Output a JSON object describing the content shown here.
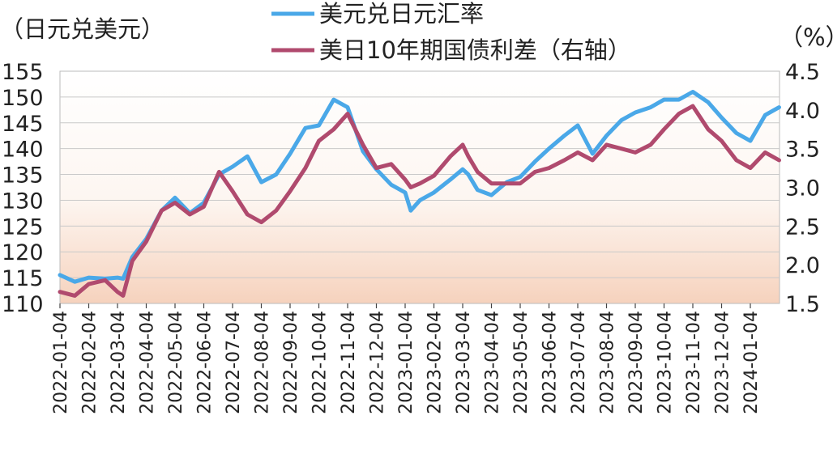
{
  "chart_data": {
    "type": "line",
    "left_unit": "（日元兑美元）",
    "right_unit": "（%）",
    "left_axis": {
      "ticks": [
        110,
        115,
        120,
        125,
        130,
        135,
        140,
        145,
        150,
        155
      ],
      "range": [
        110,
        155
      ]
    },
    "right_axis": {
      "ticks": [
        "1.5",
        "2.0",
        "2.5",
        "3.0",
        "3.5",
        "4.0",
        "4.5"
      ],
      "range": [
        1.5,
        4.5
      ]
    },
    "grid": true,
    "legend_position": "top-center",
    "x_tick_labels": [
      "2022-01-04",
      "2022-02-04",
      "2022-03-04",
      "2022-04-04",
      "2022-05-04",
      "2022-06-04",
      "2022-07-04",
      "2022-08-04",
      "2022-09-04",
      "2022-10-04",
      "2022-11-04",
      "2022-12-04",
      "2023-01-04",
      "2023-02-04",
      "2023-03-04",
      "2023-04-04",
      "2023-05-04",
      "2023-06-04",
      "2023-07-04",
      "2023-08-04",
      "2023-09-04",
      "2023-10-04",
      "2023-11-04",
      "2023-12-04",
      "2024-01-04"
    ],
    "series": [
      {
        "name": "美元兑日元汇率",
        "axis": "left",
        "color": "#4aa8e8",
        "x": [
          "2022-01-04",
          "2022-01-20",
          "2022-02-04",
          "2022-02-20",
          "2022-03-04",
          "2022-03-10",
          "2022-03-20",
          "2022-04-04",
          "2022-04-20",
          "2022-05-04",
          "2022-05-20",
          "2022-06-04",
          "2022-06-20",
          "2022-07-04",
          "2022-07-20",
          "2022-08-04",
          "2022-08-20",
          "2022-09-04",
          "2022-09-20",
          "2022-10-04",
          "2022-10-20",
          "2022-11-04",
          "2022-11-20",
          "2022-12-04",
          "2022-12-20",
          "2023-01-04",
          "2023-01-10",
          "2023-01-20",
          "2023-02-04",
          "2023-02-20",
          "2023-03-04",
          "2023-03-10",
          "2023-03-20",
          "2023-04-04",
          "2023-04-20",
          "2023-05-04",
          "2023-05-20",
          "2023-06-04",
          "2023-06-20",
          "2023-07-04",
          "2023-07-20",
          "2023-08-04",
          "2023-08-20",
          "2023-09-04",
          "2023-09-20",
          "2023-10-04",
          "2023-10-20",
          "2023-11-04",
          "2023-11-20",
          "2023-12-04",
          "2023-12-20",
          "2024-01-04",
          "2024-01-20",
          "2024-02-04"
        ],
        "values": [
          115.5,
          114.2,
          115.0,
          114.8,
          115.0,
          114.8,
          119.0,
          122.5,
          128.0,
          130.5,
          127.5,
          129.5,
          135.0,
          136.5,
          138.5,
          133.5,
          135.0,
          139.0,
          144.0,
          144.5,
          149.5,
          148.0,
          139.5,
          136.0,
          133.0,
          131.5,
          128.0,
          130.0,
          131.5,
          134.0,
          136.0,
          135.0,
          132.0,
          131.0,
          133.5,
          134.5,
          137.5,
          140.0,
          142.5,
          144.5,
          139.0,
          142.5,
          145.5,
          147.0,
          148.0,
          149.5,
          149.5,
          151.0,
          149.0,
          146.0,
          143.0,
          141.5,
          146.5,
          148.0
        ]
      },
      {
        "name": "美日10年期国债利差（右轴）",
        "axis": "right",
        "color": "#b04a6e",
        "x": [
          "2022-01-04",
          "2022-01-20",
          "2022-02-04",
          "2022-02-20",
          "2022-03-04",
          "2022-03-10",
          "2022-03-20",
          "2022-04-04",
          "2022-04-20",
          "2022-05-04",
          "2022-05-20",
          "2022-06-04",
          "2022-06-20",
          "2022-07-04",
          "2022-07-20",
          "2022-08-04",
          "2022-08-20",
          "2022-09-04",
          "2022-09-20",
          "2022-10-04",
          "2022-10-20",
          "2022-11-04",
          "2022-11-20",
          "2022-12-04",
          "2022-12-20",
          "2023-01-04",
          "2023-01-10",
          "2023-01-20",
          "2023-02-04",
          "2023-02-20",
          "2023-03-04",
          "2023-03-10",
          "2023-03-20",
          "2023-04-04",
          "2023-04-20",
          "2023-05-04",
          "2023-05-20",
          "2023-06-04",
          "2023-06-20",
          "2023-07-04",
          "2023-07-20",
          "2023-08-04",
          "2023-08-20",
          "2023-09-04",
          "2023-09-20",
          "2023-10-04",
          "2023-10-20",
          "2023-11-04",
          "2023-11-20",
          "2023-12-04",
          "2023-12-20",
          "2024-01-04",
          "2024-01-20",
          "2024-02-04"
        ],
        "values": [
          1.65,
          1.6,
          1.75,
          1.8,
          1.65,
          1.6,
          2.05,
          2.3,
          2.7,
          2.8,
          2.65,
          2.75,
          3.2,
          2.95,
          2.65,
          2.55,
          2.7,
          2.95,
          3.25,
          3.6,
          3.75,
          3.95,
          3.55,
          3.25,
          3.3,
          3.1,
          3.0,
          3.05,
          3.15,
          3.4,
          3.55,
          3.4,
          3.2,
          3.05,
          3.05,
          3.05,
          3.2,
          3.25,
          3.35,
          3.45,
          3.35,
          3.55,
          3.5,
          3.45,
          3.55,
          3.75,
          3.95,
          4.05,
          3.75,
          3.6,
          3.35,
          3.25,
          3.45,
          3.35
        ]
      }
    ]
  }
}
